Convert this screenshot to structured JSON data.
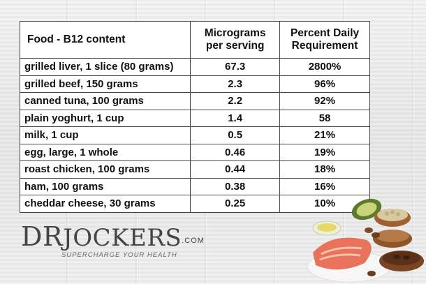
{
  "table": {
    "headers": {
      "food": "Food - B12 content",
      "micrograms_line1": "Micrograms",
      "micrograms_line2": "per serving",
      "percent_line1": "Percent Daily",
      "percent_line2": "Requirement"
    },
    "rows": [
      {
        "food": "grilled liver, 1 slice (80 grams)",
        "micrograms": "67.3",
        "percent": "2800%"
      },
      {
        "food": "grilled beef, 150 grams",
        "micrograms": "2.3",
        "percent": "96%"
      },
      {
        "food": "canned tuna, 100 grams",
        "micrograms": "2.2",
        "percent": "92%"
      },
      {
        "food": "plain yoghurt, 1 cup",
        "micrograms": "1.4",
        "percent": "58"
      },
      {
        "food": "milk, 1 cup",
        "micrograms": "0.5",
        "percent": "21%"
      },
      {
        "food": "egg, large, 1 whole",
        "micrograms": "0.46",
        "percent": "19%"
      },
      {
        "food": "roast chicken, 100 grams",
        "micrograms": "0.44",
        "percent": "18%"
      },
      {
        "food": "ham, 100 grams",
        "micrograms": "0.38",
        "percent": "16%"
      },
      {
        "food": "cheddar cheese, 30 grams",
        "micrograms": "0.25",
        "percent": "10%"
      }
    ]
  },
  "logo": {
    "brand_dr": "DR",
    "brand_jockers": "JOCKERS",
    "dotcom": ".COM",
    "tagline": "SUPERCHARGE YOUR HEALTH"
  },
  "colors": {
    "background": "#ececec",
    "table_border": "#444444",
    "text": "#111111",
    "salmon": "#e8735a",
    "avocado": "#5d7a2c"
  },
  "decor": {
    "food_image": "salmon-avocado-nuts-illustration"
  }
}
